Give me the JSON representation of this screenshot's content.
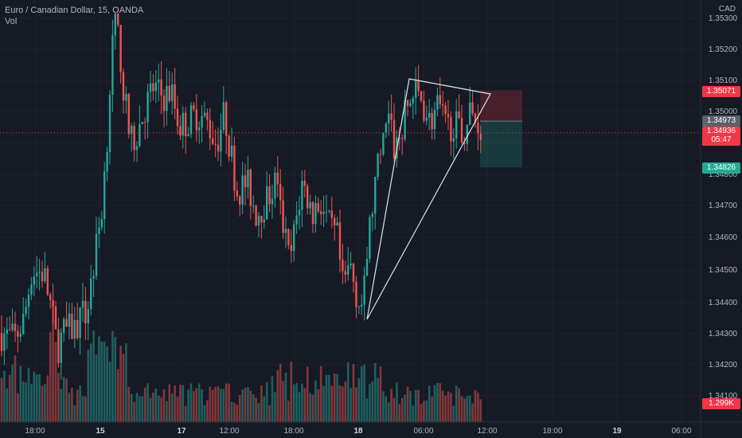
{
  "header": {
    "title": "Euro / Canadian Dollar, 15, OANDA",
    "indicator": "Vol"
  },
  "currency": "CAD",
  "price_axis": {
    "ticks": [
      "1.35300",
      "1.35200",
      "1.35100",
      "1.35000",
      "1.34900",
      "1.34800",
      "1.34700",
      "1.34600",
      "1.34500",
      "1.34400",
      "1.34300",
      "1.34200",
      "1.34100"
    ]
  },
  "time_axis": {
    "labels": [
      "18:00",
      "15",
      "17",
      "12:00",
      "18:00",
      "18",
      "06:00",
      "12:00",
      "18:00",
      "19",
      "06:00"
    ]
  },
  "price_labels": {
    "stop": "1.35071",
    "entry": "1.34973",
    "last_price": "1.34936",
    "countdown": "05:47",
    "target": "1.34826",
    "volume": "1.299K"
  },
  "colors": {
    "background": "#161a25",
    "up": "#26a69a",
    "down": "#ef5350",
    "stop_label": "#f23645",
    "target_label": "#22ab94",
    "entry_label": "#5d606b"
  },
  "chart_data": {
    "type": "candlestick",
    "symbol": "EURCAD",
    "interval": "15",
    "ylim": [
      1.3405,
      1.3536
    ],
    "last_price": 1.34936,
    "position_tool": {
      "type": "short",
      "entry": 1.34973,
      "stop": 1.35071,
      "target": 1.34826
    },
    "triangle_drawing": {
      "vertices": [
        [
          1.3434,
          "18 00:15"
        ],
        [
          1.3511,
          "18 06:00"
        ],
        [
          1.3507,
          "18 11:15"
        ]
      ]
    },
    "series": [
      {
        "name": "price",
        "values": "approximate OHLC path from 1.3430 spiking to 1.3535, consolidating near 1.3505, falling to 1.3433, recovering to 1.3510 and settling near 1.3494"
      }
    ]
  }
}
